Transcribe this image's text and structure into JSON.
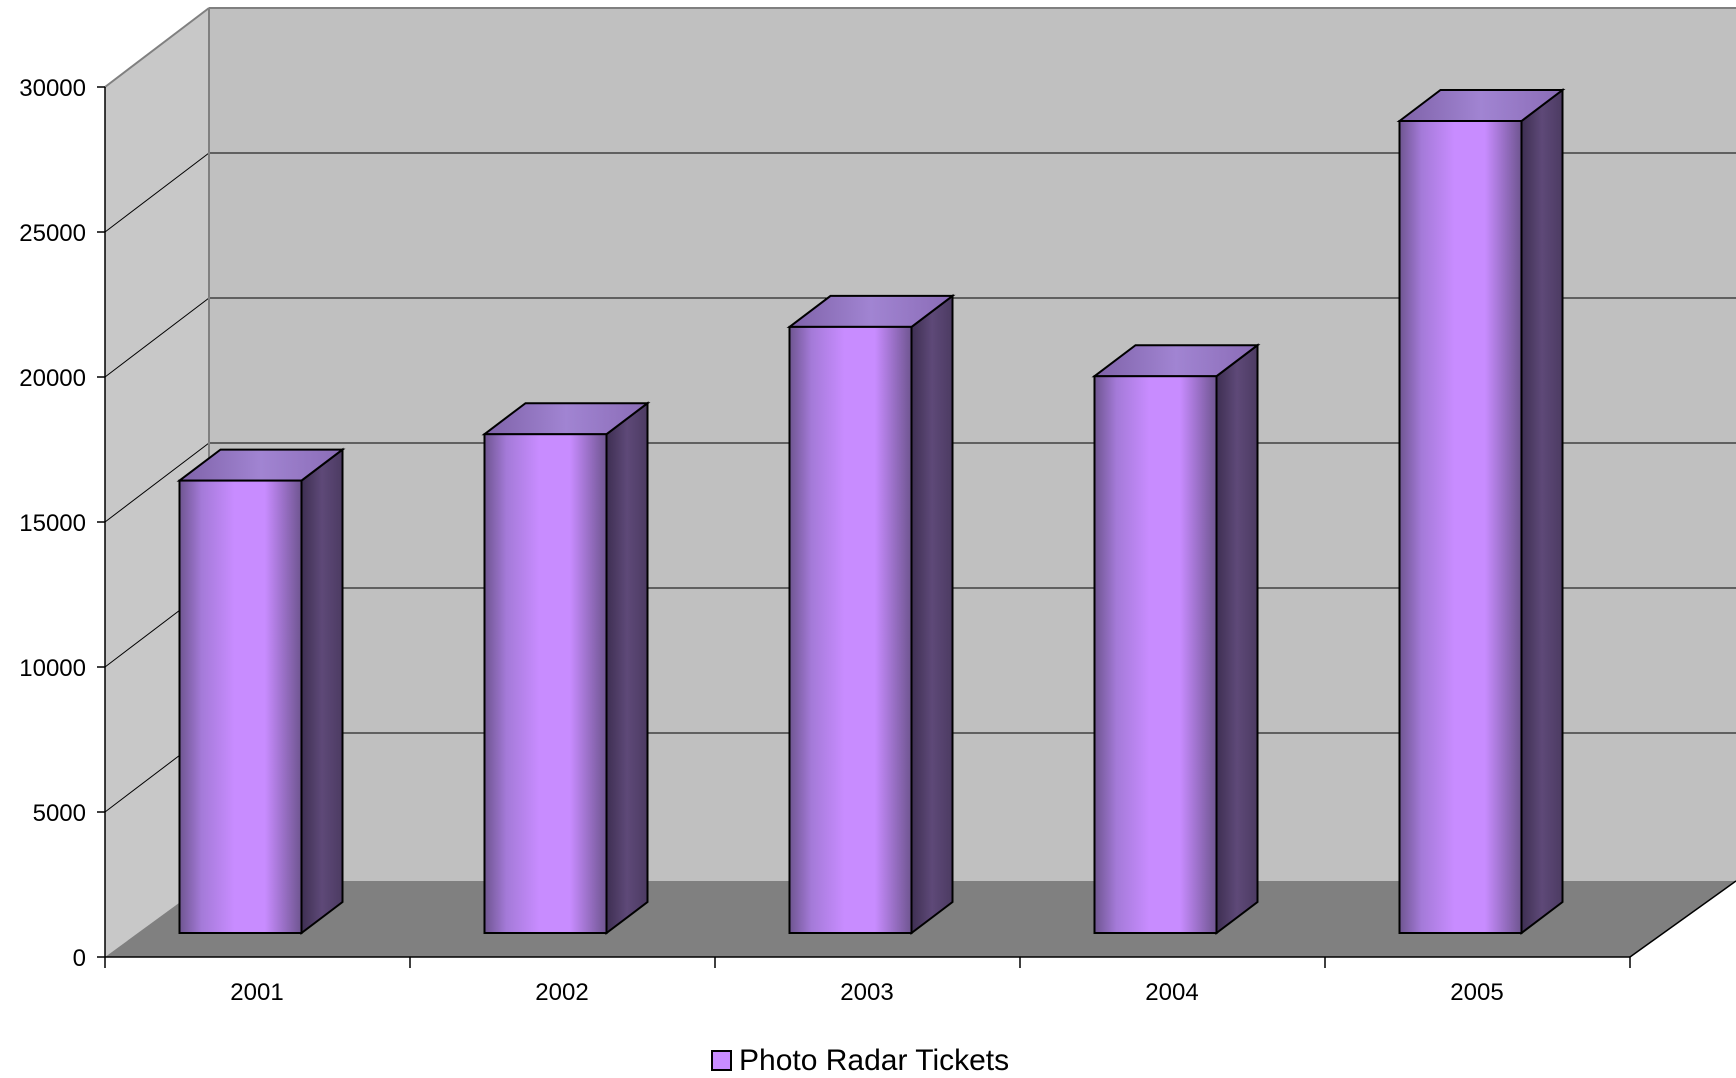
{
  "chart_data": {
    "type": "bar",
    "style": "3d-column",
    "categories": [
      "2001",
      "2002",
      "2003",
      "2004",
      "2005"
    ],
    "series": [
      {
        "name": "Photo Radar Tickets",
        "values": [
          15600,
          17200,
          20900,
          19200,
          28000
        ],
        "color": "#c88cff"
      }
    ],
    "y_ticks": [
      "0",
      "5000",
      "10000",
      "15000",
      "20000",
      "25000",
      "30000"
    ],
    "ylim": [
      0,
      30000
    ],
    "grid": true,
    "legend": "bottom-center",
    "colors": {
      "wall": "#c0c0c0",
      "side_wall": "#c8c8c8",
      "floor": "#808080",
      "bar_front": "#c88cff",
      "bar_side": "#5e4978",
      "bar_top": "#9878c0"
    }
  }
}
